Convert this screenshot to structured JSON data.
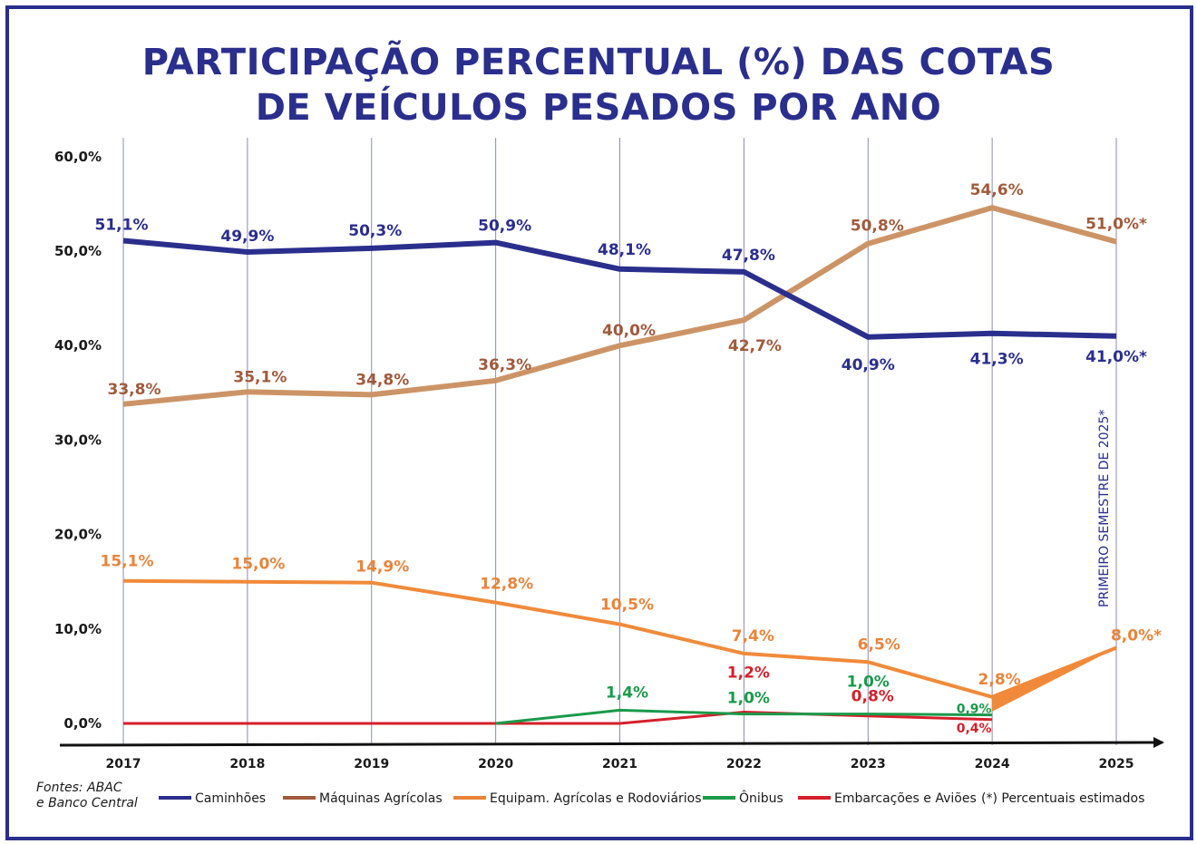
{
  "title_line1": "PARTICIPAÇÃO PERCENTUAL (%)  DAS COTAS",
  "title_line2": "DE VEÍCULOS PESADOS POR ANO",
  "source_line1": "Fontes: ABAC",
  "source_line2": "e Banco Central",
  "vertical_note": "PRIMEIRO SEMESTRE DE 2025*",
  "estimated_note": "(*) Percentuais estimados",
  "chart_data": {
    "type": "line",
    "title": "PARTICIPAÇÃO PERCENTUAL (%)  DAS COTAS DE VEÍCULOS PESADOS POR ANO",
    "xlabel": "",
    "ylabel": "",
    "x": [
      "2017",
      "2018",
      "2019",
      "2020",
      "2021",
      "2022",
      "2023",
      "2024",
      "2025"
    ],
    "ylim": [
      0,
      60
    ],
    "yticks": [
      "0,0%",
      "10,0%",
      "20,0%",
      "30,0%",
      "40,0%",
      "50,0%",
      "60,0%"
    ],
    "legend_placement": "bottom",
    "grid": "vertical lines",
    "series": [
      {
        "name": "Caminhões",
        "color": "#2a2e8c",
        "values": [
          51.1,
          49.9,
          50.3,
          50.9,
          48.1,
          47.8,
          40.9,
          41.3,
          41.0
        ],
        "labels": [
          "51,1%",
          "49,9%",
          "50,3%",
          "50,9%",
          "48,1%",
          "47,8%",
          "40,9%",
          "41,3%",
          "41,0%*"
        ]
      },
      {
        "name": "Máquinas Agrícolas",
        "color": "#cc9466",
        "label_color": "#a05a3c",
        "values": [
          33.8,
          35.1,
          34.8,
          36.3,
          40.0,
          42.7,
          50.8,
          54.6,
          51.0
        ],
        "labels": [
          "33,8%",
          "35,1%",
          "34,8%",
          "36,3%",
          "40,0%",
          "42,7%",
          "50,8%",
          "54,6%",
          "51,0%*"
        ]
      },
      {
        "name": "Equipam. Agrícolas e Rodoviários",
        "color": "#f08a3a",
        "label_color": "#e8843a",
        "values": [
          15.1,
          15.0,
          14.9,
          12.8,
          10.5,
          7.4,
          6.5,
          2.8,
          8.0
        ],
        "labels": [
          "15,1%",
          "15,0%",
          "14,9%",
          "12,8%",
          "10,5%",
          "7,4%",
          "6,5%",
          "2,8%",
          "8,0%*"
        ]
      },
      {
        "name": "Ônibus",
        "color": "#1a9a4a",
        "values": [
          null,
          null,
          null,
          0.0,
          1.4,
          1.0,
          1.0,
          0.9,
          null
        ],
        "labels": [
          "",
          "",
          "",
          "",
          "1,4%",
          "1,0%",
          "1,0%",
          "0,9%",
          ""
        ]
      },
      {
        "name": "Embarcações e Aviões",
        "color": "#d4202a",
        "values": [
          0.0,
          0.0,
          0.0,
          0.0,
          0.0,
          1.2,
          0.8,
          0.4,
          null
        ],
        "labels": [
          "",
          "",
          "",
          "",
          "",
          "1,2%",
          "0,8%",
          "0,4%",
          ""
        ]
      }
    ]
  }
}
